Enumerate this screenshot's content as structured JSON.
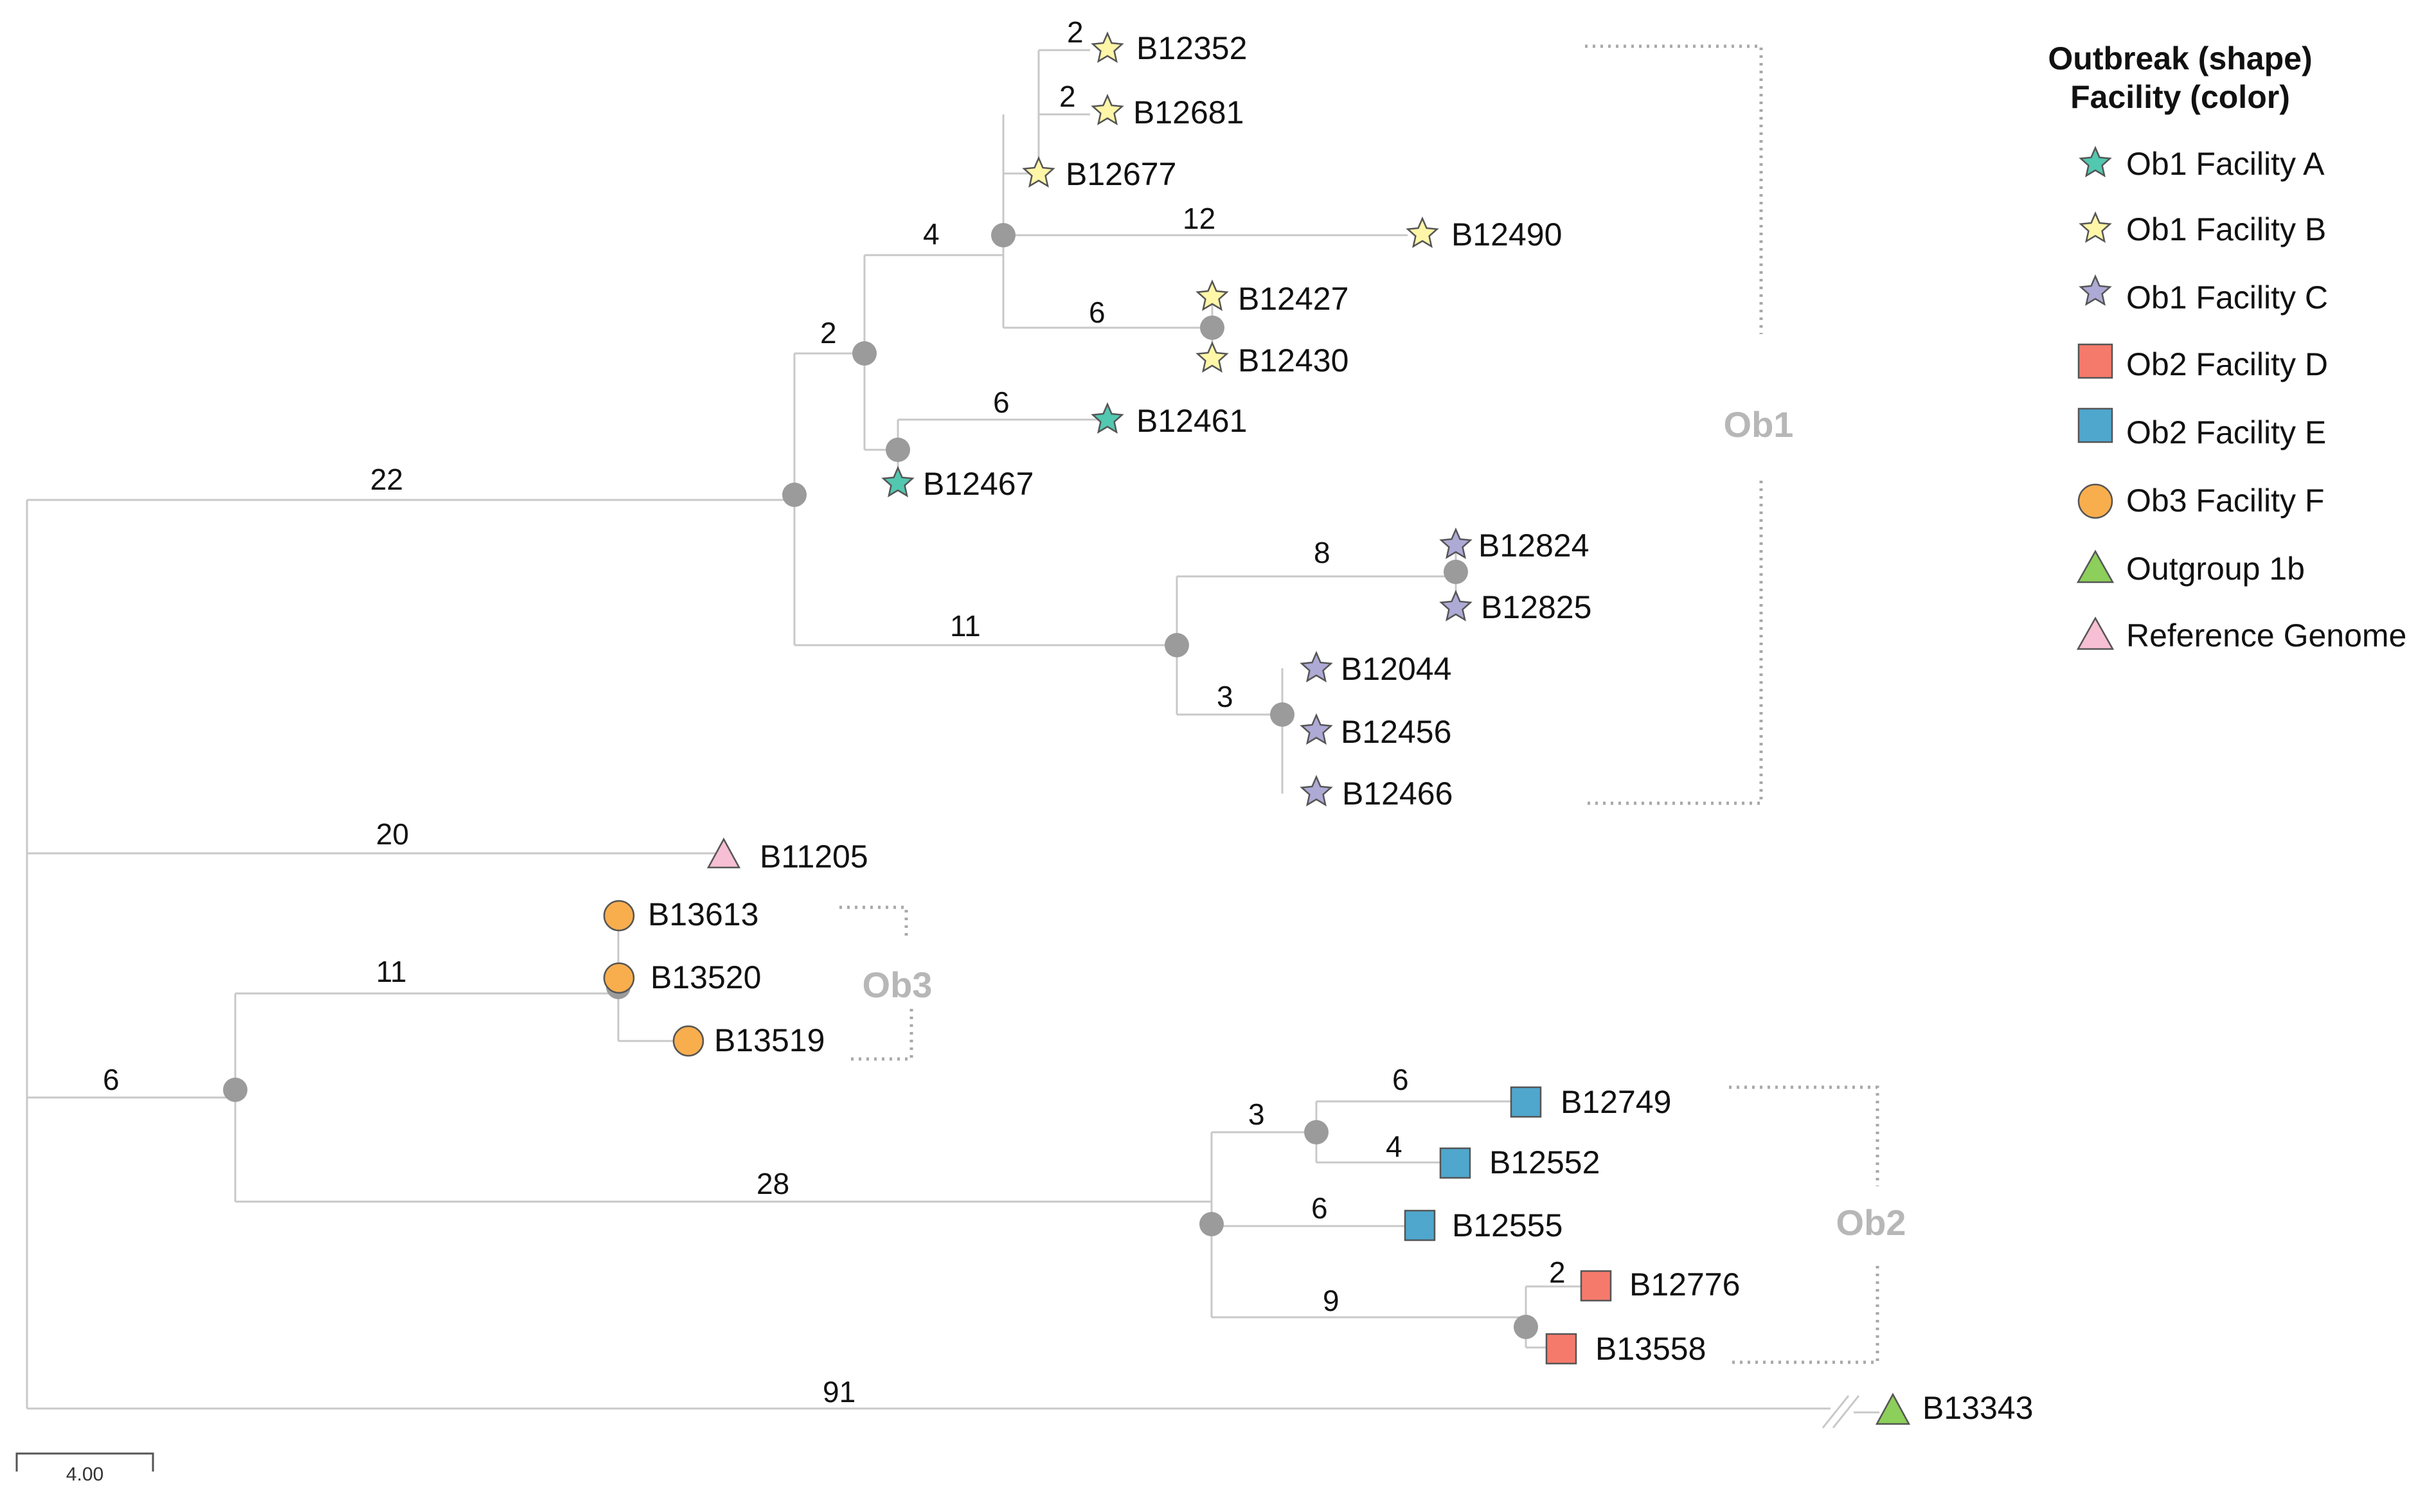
{
  "colors": {
    "facility_a": "#52c8b0",
    "facility_b": "#fff6a8",
    "facility_c": "#aeaad6",
    "facility_d": "#f57a6c",
    "facility_e": "#4fa7cd",
    "facility_f": "#f9ae4d",
    "outgroup": "#8ccf5a",
    "reference": "#f7bfd3",
    "branch": "#c8c8c8",
    "node": "#9b9b9b",
    "bracket_label": "#b7b7b7"
  },
  "tree": {
    "tips": [
      {
        "id": "B12352",
        "marker": "star",
        "color_key": "facility_b"
      },
      {
        "id": "B12681",
        "marker": "star",
        "color_key": "facility_b"
      },
      {
        "id": "B12677",
        "marker": "star",
        "color_key": "facility_b"
      },
      {
        "id": "B12490",
        "marker": "star",
        "color_key": "facility_b"
      },
      {
        "id": "B12427",
        "marker": "star",
        "color_key": "facility_b"
      },
      {
        "id": "B12430",
        "marker": "star",
        "color_key": "facility_b"
      },
      {
        "id": "B12461",
        "marker": "star",
        "color_key": "facility_a"
      },
      {
        "id": "B12467",
        "marker": "star",
        "color_key": "facility_a"
      },
      {
        "id": "B12824",
        "marker": "star",
        "color_key": "facility_c"
      },
      {
        "id": "B12825",
        "marker": "star",
        "color_key": "facility_c"
      },
      {
        "id": "B12044",
        "marker": "star",
        "color_key": "facility_c"
      },
      {
        "id": "B12456",
        "marker": "star",
        "color_key": "facility_c"
      },
      {
        "id": "B12466",
        "marker": "star",
        "color_key": "facility_c"
      },
      {
        "id": "B11205",
        "marker": "triangle",
        "color_key": "reference"
      },
      {
        "id": "B13613",
        "marker": "circle",
        "color_key": "facility_f"
      },
      {
        "id": "B13520",
        "marker": "circle",
        "color_key": "facility_f"
      },
      {
        "id": "B13519",
        "marker": "circle",
        "color_key": "facility_f"
      },
      {
        "id": "B12749",
        "marker": "square",
        "color_key": "facility_e"
      },
      {
        "id": "B12552",
        "marker": "square",
        "color_key": "facility_e"
      },
      {
        "id": "B12555",
        "marker": "square",
        "color_key": "facility_e"
      },
      {
        "id": "B12776",
        "marker": "square",
        "color_key": "facility_d"
      },
      {
        "id": "B13558",
        "marker": "square",
        "color_key": "facility_d"
      },
      {
        "id": "B13343",
        "marker": "triangle",
        "color_key": "outgroup"
      }
    ],
    "branch_lengths": [
      "2",
      "2",
      "4",
      "12",
      "6",
      "2",
      "6",
      "22",
      "8",
      "11",
      "3",
      "20",
      "11",
      "6",
      "6",
      "3",
      "4",
      "28",
      "6",
      "2",
      "9",
      "91"
    ]
  },
  "groups": [
    "Ob1",
    "Ob3",
    "Ob2"
  ],
  "legend": {
    "title_line1": "Outbreak (shape)",
    "title_line2": "Facility (color)",
    "items": [
      {
        "label": "Ob1 Facility A",
        "marker": "star",
        "color_key": "facility_a"
      },
      {
        "label": "Ob1 Facility B",
        "marker": "star",
        "color_key": "facility_b"
      },
      {
        "label": "Ob1 Facility C",
        "marker": "star",
        "color_key": "facility_c"
      },
      {
        "label": "Ob2 Facility D",
        "marker": "square",
        "color_key": "facility_d"
      },
      {
        "label": "Ob2 Facility E",
        "marker": "square",
        "color_key": "facility_e"
      },
      {
        "label": "Ob3 Facility F",
        "marker": "circle",
        "color_key": "facility_f"
      },
      {
        "label": "Outgroup 1b",
        "marker": "triangle",
        "color_key": "outgroup"
      },
      {
        "label": "Reference Genome",
        "marker": "triangle",
        "color_key": "reference"
      }
    ]
  },
  "scale_bar": {
    "label": "4.00"
  }
}
